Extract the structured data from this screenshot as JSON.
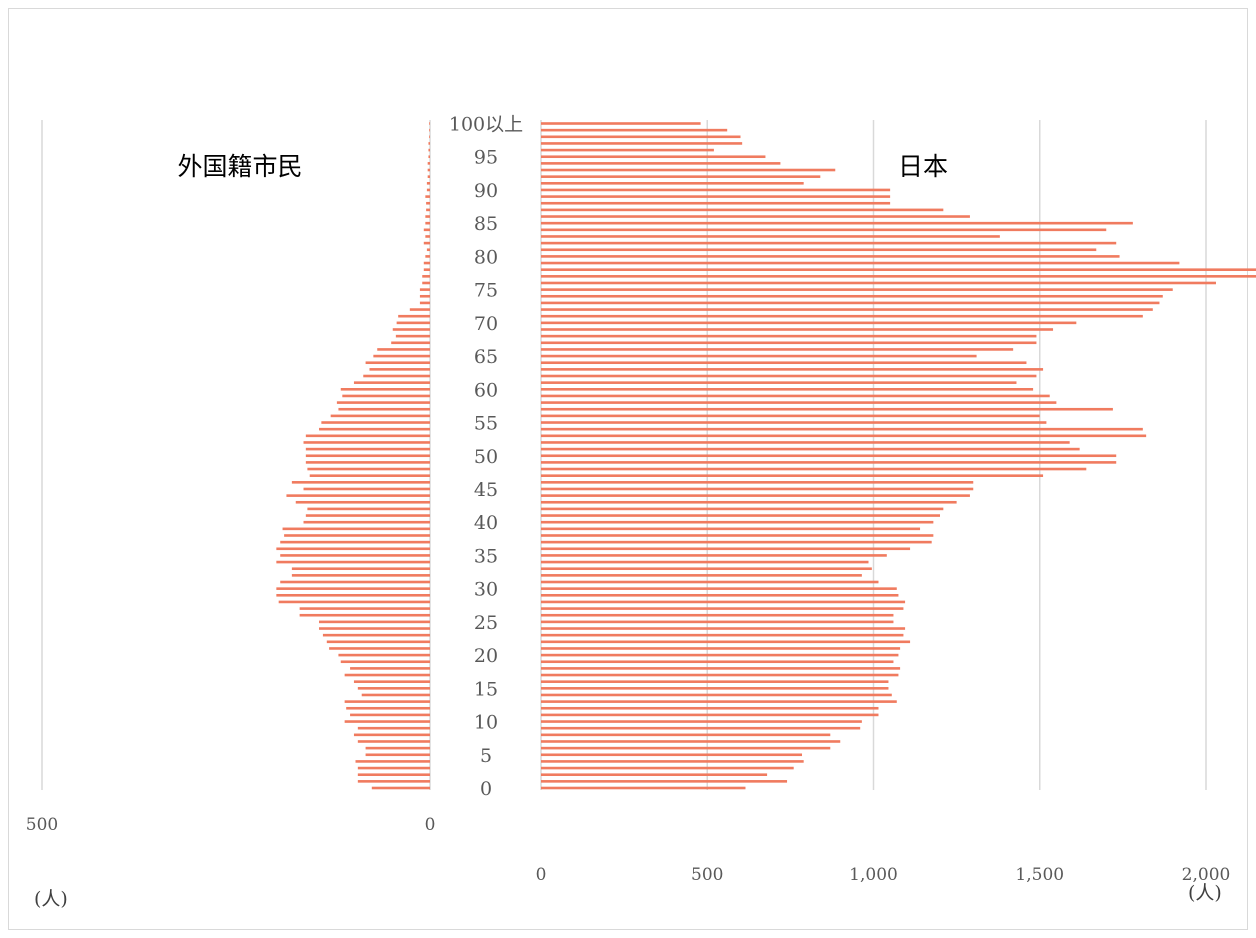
{
  "chart_data": {
    "type": "bar",
    "orientation": "horizontal",
    "layout": "population-pyramid",
    "left_panel": {
      "title": "外国籍市民",
      "unit": "(人)",
      "xlim": [
        0,
        500
      ],
      "ticks": [
        "500",
        "0"
      ],
      "tick_values": [
        500,
        0
      ]
    },
    "right_panel": {
      "title": "日本",
      "unit": "(人)",
      "xlim": [
        0,
        2000
      ],
      "ticks": [
        "0",
        "500",
        "1,000",
        "1,500",
        "2,000"
      ],
      "tick_values": [
        0,
        500,
        1000,
        1500,
        2000
      ]
    },
    "age_labels": [
      "0",
      "5",
      "10",
      "15",
      "20",
      "25",
      "30",
      "35",
      "40",
      "45",
      "50",
      "55",
      "60",
      "65",
      "70",
      "75",
      "80",
      "85",
      "90",
      "95",
      "100以上"
    ],
    "age_label_values": [
      0,
      5,
      10,
      15,
      20,
      25,
      30,
      35,
      40,
      45,
      50,
      55,
      60,
      65,
      70,
      75,
      80,
      85,
      90,
      95,
      100
    ],
    "categories": [
      "0",
      "1",
      "2",
      "3",
      "4",
      "5",
      "6",
      "7",
      "8",
      "9",
      "10",
      "11",
      "12",
      "13",
      "14",
      "15",
      "16",
      "17",
      "18",
      "19",
      "20",
      "21",
      "22",
      "23",
      "24",
      "25",
      "26",
      "27",
      "28",
      "29",
      "30",
      "31",
      "32",
      "33",
      "34",
      "35",
      "36",
      "37",
      "38",
      "39",
      "40",
      "41",
      "42",
      "43",
      "44",
      "45",
      "46",
      "47",
      "48",
      "49",
      "50",
      "51",
      "52",
      "53",
      "54",
      "55",
      "56",
      "57",
      "58",
      "59",
      "60",
      "61",
      "62",
      "63",
      "64",
      "65",
      "66",
      "67",
      "68",
      "69",
      "70",
      "71",
      "72",
      "73",
      "74",
      "75",
      "76",
      "77",
      "78",
      "79",
      "80",
      "81",
      "82",
      "83",
      "84",
      "85",
      "86",
      "87",
      "88",
      "89",
      "90",
      "91",
      "92",
      "93",
      "94",
      "95",
      "96",
      "97",
      "98",
      "99",
      "100以上"
    ],
    "series": [
      {
        "name": "外国籍市民",
        "color": "#f07b5f",
        "values": [
          75,
          93,
          93,
          93,
          96,
          83,
          83,
          93,
          98,
          93,
          110,
          103,
          108,
          110,
          88,
          93,
          98,
          110,
          103,
          115,
          118,
          130,
          133,
          138,
          143,
          143,
          168,
          168,
          195,
          198,
          198,
          193,
          178,
          178,
          198,
          193,
          198,
          193,
          188,
          190,
          163,
          160,
          158,
          173,
          185,
          163,
          178,
          155,
          158,
          160,
          160,
          160,
          163,
          160,
          143,
          140,
          128,
          118,
          120,
          113,
          115,
          98,
          86,
          78,
          83,
          73,
          68,
          50,
          44,
          48,
          43,
          41,
          26,
          13,
          13,
          13,
          10,
          10,
          8,
          8,
          6,
          4,
          8,
          6,
          8,
          6,
          6,
          5,
          5,
          6,
          4,
          4,
          3,
          3,
          3,
          2,
          2,
          2,
          1,
          1,
          1
        ]
      },
      {
        "name": "日本",
        "color": "#f07b5f",
        "values": [
          615,
          740,
          680,
          760,
          790,
          785,
          870,
          900,
          870,
          960,
          965,
          1015,
          1015,
          1070,
          1055,
          1045,
          1045,
          1075,
          1080,
          1060,
          1075,
          1080,
          1110,
          1090,
          1095,
          1060,
          1060,
          1090,
          1095,
          1075,
          1070,
          1015,
          965,
          995,
          985,
          1040,
          1110,
          1175,
          1180,
          1140,
          1180,
          1200,
          1210,
          1250,
          1290,
          1300,
          1300,
          1510,
          1640,
          1730,
          1730,
          1620,
          1590,
          1820,
          1810,
          1520,
          1500,
          1720,
          1550,
          1530,
          1480,
          1430,
          1490,
          1510,
          1460,
          1310,
          1420,
          1490,
          1490,
          1540,
          1610,
          1810,
          1840,
          1860,
          1870,
          1900,
          2030,
          2180,
          2190,
          1920,
          1740,
          1670,
          1730,
          1380,
          1700,
          1780,
          1290,
          1210,
          1050,
          1050,
          1050,
          790,
          840,
          885,
          720,
          675,
          520,
          605,
          600,
          560,
          480
        ]
      }
    ]
  }
}
